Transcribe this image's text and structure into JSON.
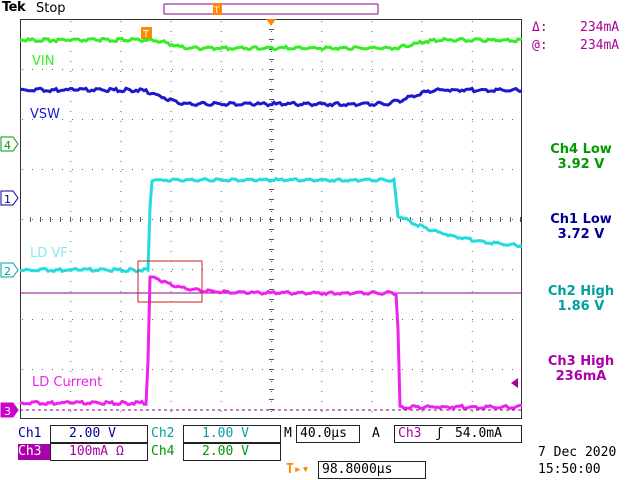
{
  "header": {
    "brand": "Tek",
    "acq_state": "Stop"
  },
  "traces": {
    "vin_label": "VIN",
    "vsw_label": "VSW",
    "ldvf_label": "LD VF",
    "ldcur_label": "LD Current"
  },
  "channel_markers": {
    "ch4": "4",
    "ch1": "1",
    "ch2": "2",
    "ch3": "3"
  },
  "cursor": {
    "delta_symbol": "Δ:",
    "delta_value": "234mA",
    "at_symbol": "@:",
    "at_value": "234mA",
    "trigger_marker": "T"
  },
  "measurements": [
    {
      "title": "Ch4 Low",
      "value": "3.92 V",
      "color": "#009900"
    },
    {
      "title": "Ch1 Low",
      "value": "3.72 V",
      "color": "#000099"
    },
    {
      "title": "Ch2 High",
      "value": "1.86 V",
      "color": "#00a0a0"
    },
    {
      "title": "Ch3 High",
      "value": "236mA",
      "color": "#aa00aa"
    }
  ],
  "status": {
    "ch1_label": "Ch1",
    "ch1_scale": "2.00 V",
    "ch2_label": "Ch2",
    "ch2_scale": "1.00 V",
    "timebase_prefix": "M",
    "timebase": "40.0µs",
    "trig_mode": "A",
    "trig_source": "Ch3",
    "trig_slope": "ʃ",
    "trig_level": "54.0mA",
    "ch3_label": "Ch3",
    "ch3_scale": "100mA Ω",
    "ch4_label": "Ch4",
    "ch4_scale": "2.00 V",
    "trig_pos_icon": "T▸▾",
    "trig_pos": "98.8000µs"
  },
  "datetime": {
    "date": "7 Dec  2020",
    "time": "15:50:00"
  },
  "colors": {
    "vin": "#33ee22",
    "vsw": "#1a1acc",
    "ldvf": "#22dddd",
    "ldcur": "#ee22ee",
    "cursor_line": "#880088",
    "grid": "#555555",
    "trigger": "#ff8800"
  }
}
